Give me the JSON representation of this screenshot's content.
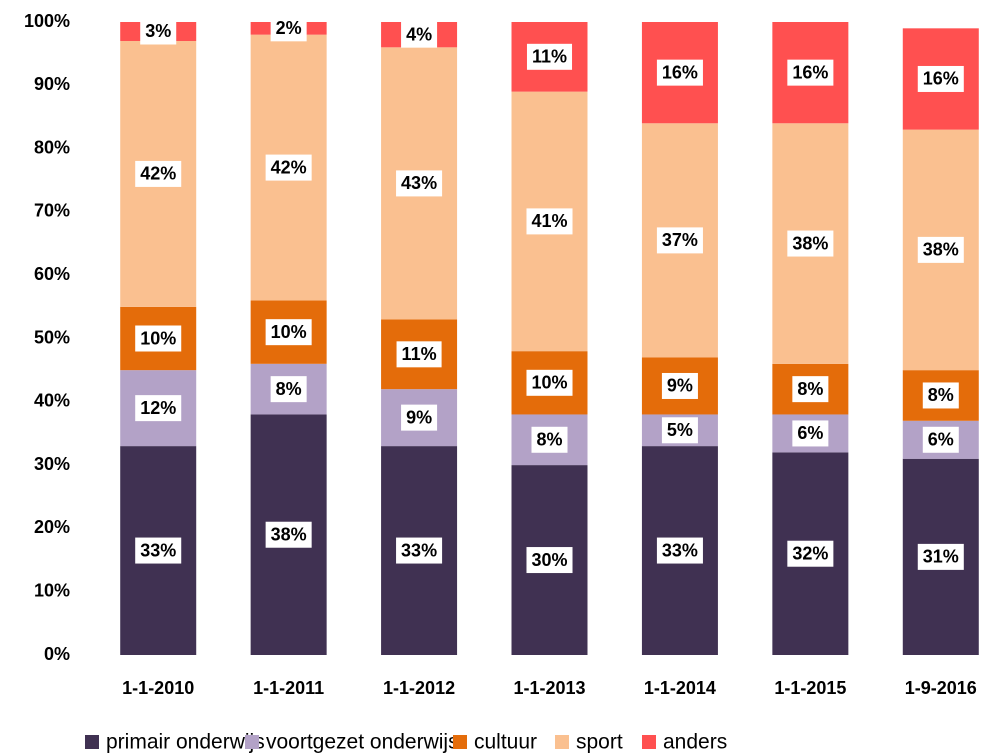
{
  "chart_data": {
    "type": "stacked_bar",
    "categories": [
      "1-1-2010",
      "1-1-2011",
      "1-1-2012",
      "1-1-2013",
      "1-1-2014",
      "1-1-2015",
      "1-9-2016"
    ],
    "series": [
      {
        "name": "primair onderwijs",
        "color": "#403152",
        "values": [
          33,
          38,
          33,
          30,
          33,
          32,
          31
        ],
        "value_labels": [
          "33%",
          "38%",
          "33%",
          "30%",
          "33%",
          "32%",
          "31%"
        ]
      },
      {
        "name": "voortgezet onderwijs",
        "color": "#b3a2c7",
        "values": [
          12,
          8,
          9,
          8,
          5,
          6,
          6
        ],
        "value_labels": [
          "12%",
          "8%",
          "9%",
          "8%",
          "5%",
          "6%",
          "6%"
        ]
      },
      {
        "name": "cultuur",
        "color": "#e46c0a",
        "values": [
          10,
          10,
          11,
          10,
          9,
          8,
          8
        ],
        "value_labels": [
          "10%",
          "10%",
          "11%",
          "10%",
          "9%",
          "8%",
          "8%"
        ]
      },
      {
        "name": "sport",
        "color": "#fac090",
        "values": [
          42,
          42,
          43,
          41,
          37,
          38,
          38
        ],
        "value_labels": [
          "42%",
          "42%",
          "43%",
          "41%",
          "37%",
          "38%",
          "38%"
        ]
      },
      {
        "name": "anders",
        "color": "#ff5050",
        "values": [
          3,
          2,
          4,
          11,
          16,
          16,
          16
        ],
        "value_labels": [
          "3%",
          "2%",
          "4%",
          "11%",
          "16%",
          "16%",
          "16%"
        ]
      }
    ],
    "ylim": [
      0,
      100
    ],
    "yticks": [
      {
        "value": 0,
        "label": "0%"
      },
      {
        "value": 10,
        "label": "10%"
      },
      {
        "value": 20,
        "label": "20%"
      },
      {
        "value": 30,
        "label": "30%"
      },
      {
        "value": 40,
        "label": "40%"
      },
      {
        "value": 50,
        "label": "50%"
      },
      {
        "value": 60,
        "label": "60%"
      },
      {
        "value": 70,
        "label": "70%"
      },
      {
        "value": 80,
        "label": "80%"
      },
      {
        "value": 90,
        "label": "90%"
      },
      {
        "value": 100,
        "label": "100%"
      }
    ],
    "legend": "bottom"
  }
}
